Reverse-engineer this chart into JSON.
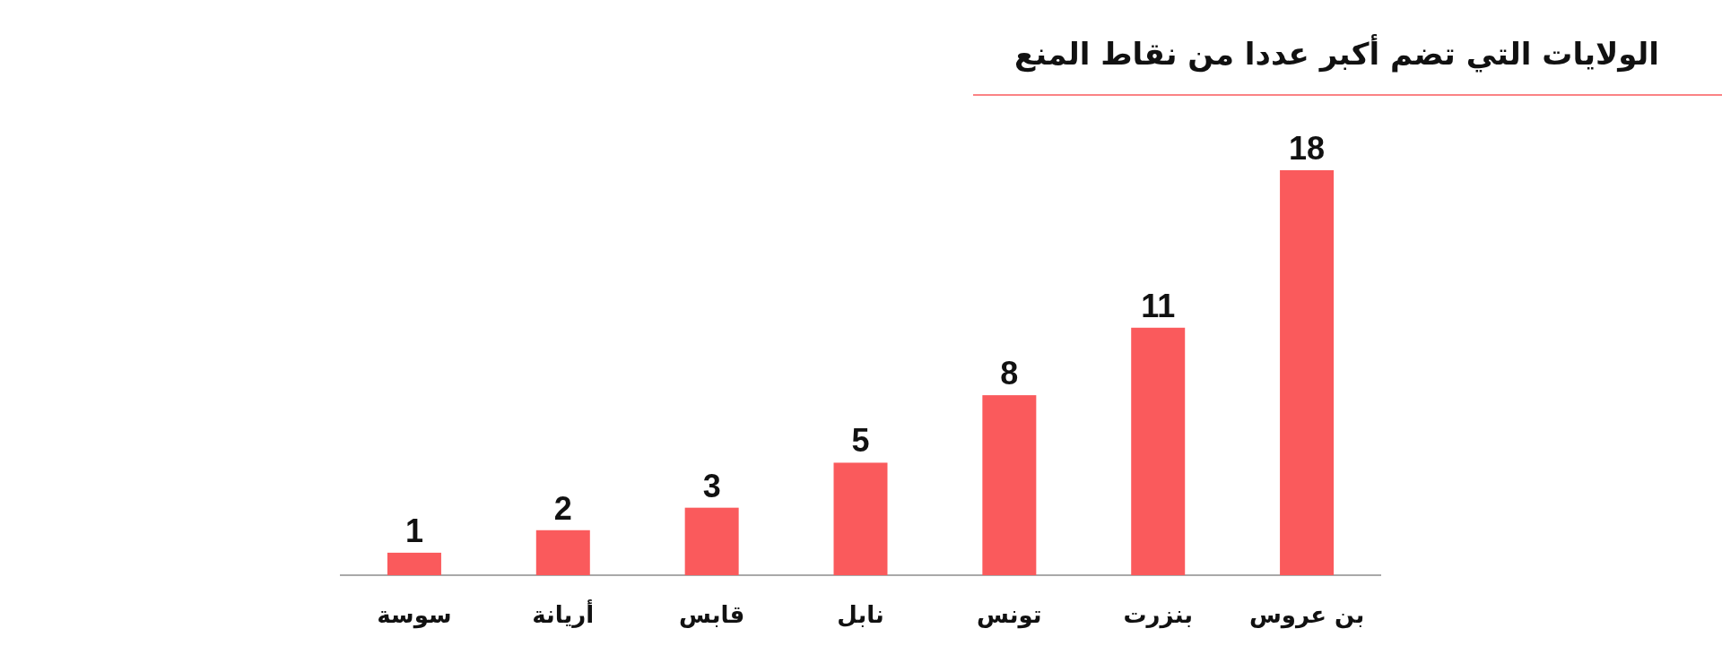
{
  "chart_data": {
    "type": "bar",
    "title": "الولايات التي تضم أكبر عددا من نقاط المنع",
    "categories": [
      "سوسة",
      "أريانة",
      "قابس",
      "نابل",
      "تونس",
      "بنزرت",
      "بن عروس"
    ],
    "values": [
      1,
      2,
      3,
      5,
      8,
      11,
      18
    ],
    "color": "#fa5a5c",
    "data_labels": true
  }
}
